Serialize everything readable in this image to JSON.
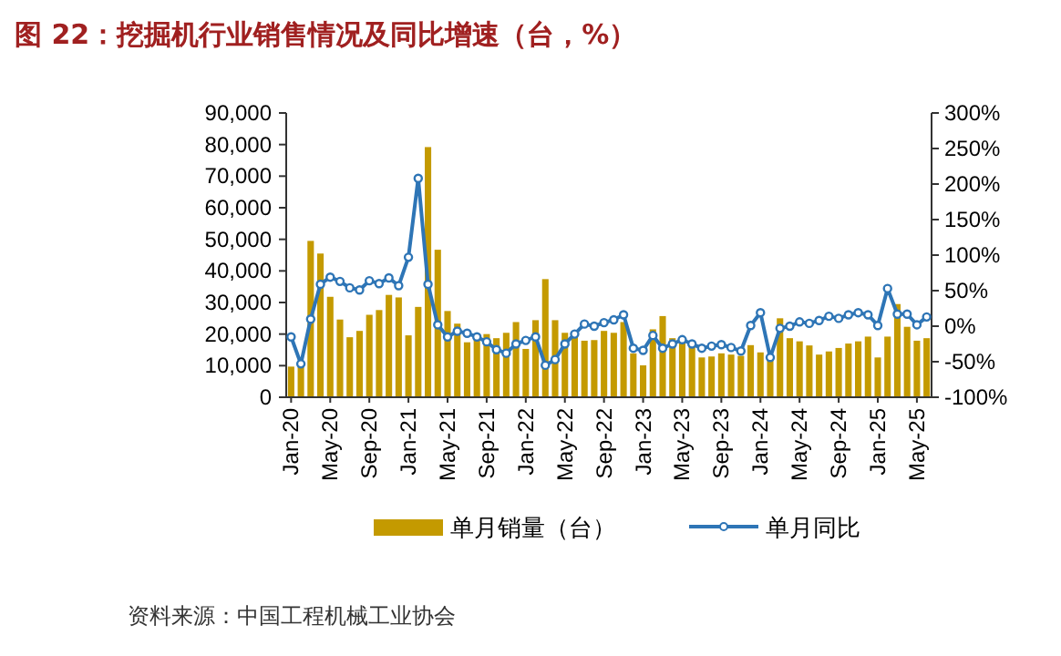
{
  "chart_data": {
    "type": "bar",
    "title": "图 22：挖掘机行业销售情况及同比增速（台，%）",
    "annotations": [
      "资料来源：中国工程机械工业协会"
    ],
    "categories": [
      "Jan-20",
      null,
      null,
      null,
      "May-20",
      null,
      null,
      null,
      "Sep-20",
      null,
      null,
      null,
      "Jan-21",
      null,
      null,
      null,
      "May-21",
      null,
      null,
      null,
      "Sep-21",
      null,
      null,
      null,
      "Jan-22",
      null,
      null,
      null,
      "May-22",
      null,
      null,
      null,
      "Sep-22",
      null,
      null,
      null,
      "Jan-23",
      null,
      null,
      null,
      "May-23",
      null,
      null,
      null,
      "Sep-23",
      null,
      null,
      null,
      "Jan-24",
      null,
      null,
      null,
      "May-24",
      null,
      null,
      null,
      "Sep-24",
      null,
      null,
      null,
      "Jan-25",
      null,
      null,
      null,
      "May-25",
      null
    ],
    "series": [
      {
        "name": "单月销量（台）",
        "color": "#c49a00",
        "values": [
          9700,
          9700,
          49500,
          45500,
          31800,
          24600,
          19000,
          21000,
          26100,
          27600,
          32400,
          31600,
          19600,
          28600,
          79200,
          46700,
          27300,
          23300,
          17400,
          18700,
          20000,
          18700,
          20400,
          23800,
          15300,
          24400,
          37400,
          24400,
          20400,
          20000,
          17900,
          18100,
          21000,
          20400,
          23800,
          13900,
          10100,
          21500,
          25700,
          18700,
          17700,
          16800,
          12600,
          12900,
          13900,
          13500,
          13100,
          16500,
          14200,
          12500,
          25000,
          18700,
          17700,
          16400,
          13500,
          14500,
          15600,
          17000,
          17700,
          19200,
          12600,
          19200,
          29500,
          22300,
          17900,
          18700
        ]
      },
      {
        "name": "单月同比",
        "type": "line",
        "axis": "y2",
        "color": "#2e75b6",
        "values": [
          -15,
          -53,
          10,
          59,
          69,
          63,
          54,
          51,
          64,
          60,
          68,
          57,
          97,
          208,
          59,
          2,
          -15,
          -7,
          -10,
          -15,
          -22,
          -33,
          -38,
          -25,
          -20,
          -15,
          -55,
          -47,
          -25,
          -11,
          3,
          0,
          5,
          9,
          16,
          -31,
          -34,
          -13,
          -31,
          -25,
          -19,
          -25,
          -31,
          -28,
          -26,
          -30,
          -35,
          1,
          19,
          -44,
          -3,
          0,
          6,
          4,
          8,
          14,
          11,
          16,
          19,
          16,
          1,
          53,
          17,
          17,
          2,
          13
        ]
      }
    ],
    "ylim": [
      0,
      90000
    ],
    "yticks": [
      0,
      {
        "value": 10000,
        "label": "10,000"
      },
      {
        "value": 20000,
        "label": "20,000"
      },
      {
        "value": 30000,
        "label": "30,000"
      },
      {
        "value": 40000,
        "label": "40,000"
      },
      {
        "value": 50000,
        "label": "50,000"
      },
      {
        "value": 60000,
        "label": "60,000"
      },
      {
        "value": 70000,
        "label": "70,000"
      },
      {
        "value": 80000,
        "label": "80,000"
      },
      {
        "value": 90000,
        "label": "90,000"
      }
    ],
    "y2lim": [
      -100,
      300
    ],
    "y2ticks": [
      {
        "value": -100,
        "label": "-100%"
      },
      {
        "value": -50,
        "label": "-50%"
      },
      {
        "value": 0,
        "label": "0%"
      },
      {
        "value": 50,
        "label": "50%"
      },
      {
        "value": 100,
        "label": "100%"
      },
      {
        "value": 150,
        "label": "150%"
      },
      {
        "value": 200,
        "label": "200%"
      },
      {
        "value": 250,
        "label": "250%"
      },
      {
        "value": 300,
        "label": "300%"
      }
    ],
    "marker": "circle",
    "grid": false,
    "legend": "bottom"
  }
}
